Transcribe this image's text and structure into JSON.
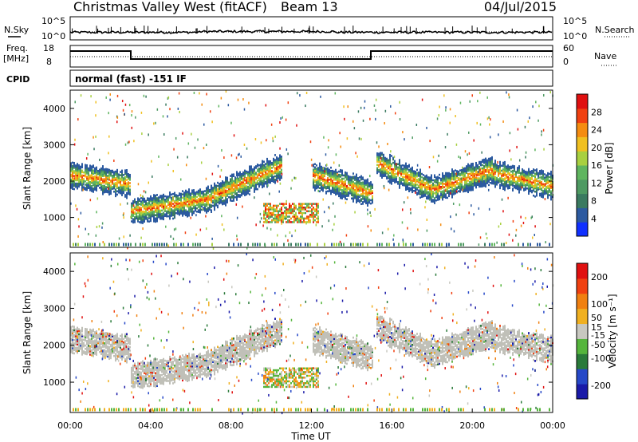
{
  "header": {
    "station": "Christmas Valley West (fitACF)",
    "beam": "Beam 13",
    "date": "04/Jul/2015"
  },
  "noise_panel": {
    "left_label": "N.Sky",
    "right_label": "N.Search",
    "ticks": [
      "10^5",
      "10^0"
    ]
  },
  "freq_panel": {
    "left_label_1": "Freq.",
    "left_label_2": "[MHz]",
    "left_ticks": [
      "18",
      "8"
    ],
    "right_label": "Nave",
    "right_ticks": [
      "60",
      "0"
    ]
  },
  "cpid": {
    "label": "CPID",
    "value": "normal (fast) -151 IF"
  },
  "colors": {
    "power": [
      "#1030ff",
      "#2c5aa0",
      "#3a7a60",
      "#4e9a62",
      "#5fb55f",
      "#a8d040",
      "#f0c020",
      "#f58c10",
      "#f04010",
      "#e01010"
    ],
    "velocity": [
      "#1a1aa8",
      "#2648c8",
      "#2a7a3a",
      "#55b53c",
      "#c8c8c0",
      "#f0b020",
      "#f08010",
      "#f04010",
      "#e01010"
    ],
    "ground": "#c0c0b8"
  },
  "chart_data": [
    {
      "type": "heatmap",
      "quantity": "power",
      "ylabel": "Slant Range [km]",
      "yticks": [
        1000,
        2000,
        3000,
        4000
      ],
      "ylim": [
        180,
        4500
      ],
      "xlim": [
        "00:00",
        "24:00"
      ],
      "colorbar": {
        "label": "Power [dB]",
        "ticks": [
          28,
          24,
          20,
          16,
          12,
          8,
          4
        ],
        "range": [
          0,
          32
        ]
      },
      "echo_bands": [
        {
          "t0": 0.0,
          "t1": 3.0,
          "r0": 2150,
          "r1": 1900
        },
        {
          "t0": 3.0,
          "t1": 7.0,
          "r0": 1150,
          "r1": 1500
        },
        {
          "t0": 7.0,
          "t1": 10.5,
          "r0": 1550,
          "r1": 2400
        },
        {
          "t0": 12.0,
          "t1": 15.0,
          "r0": 2150,
          "r1": 1650
        },
        {
          "t0": 15.2,
          "t1": 18.0,
          "r0": 2500,
          "r1": 1750
        },
        {
          "t0": 18.0,
          "t1": 21.0,
          "r0": 1750,
          "r1": 2300
        },
        {
          "t0": 21.0,
          "t1": 24.0,
          "r0": 2200,
          "r1": 1850
        }
      ]
    },
    {
      "type": "heatmap",
      "quantity": "velocity",
      "ylabel": "Slant Range [km]",
      "yticks": [
        1000,
        2000,
        3000,
        4000
      ],
      "ylim": [
        180,
        4500
      ],
      "xlim": [
        "00:00",
        "24:00"
      ],
      "xlabel": "Time UT",
      "xticks": [
        "00:00",
        "04:00",
        "08:00",
        "12:00",
        "16:00",
        "20:00",
        "00:00"
      ],
      "colorbar": {
        "label": "Velocity [m s⁻¹]",
        "ticks": [
          200,
          100,
          50,
          15,
          -15,
          -50,
          -100,
          -200
        ],
        "range": [
          -250,
          250
        ]
      }
    }
  ]
}
